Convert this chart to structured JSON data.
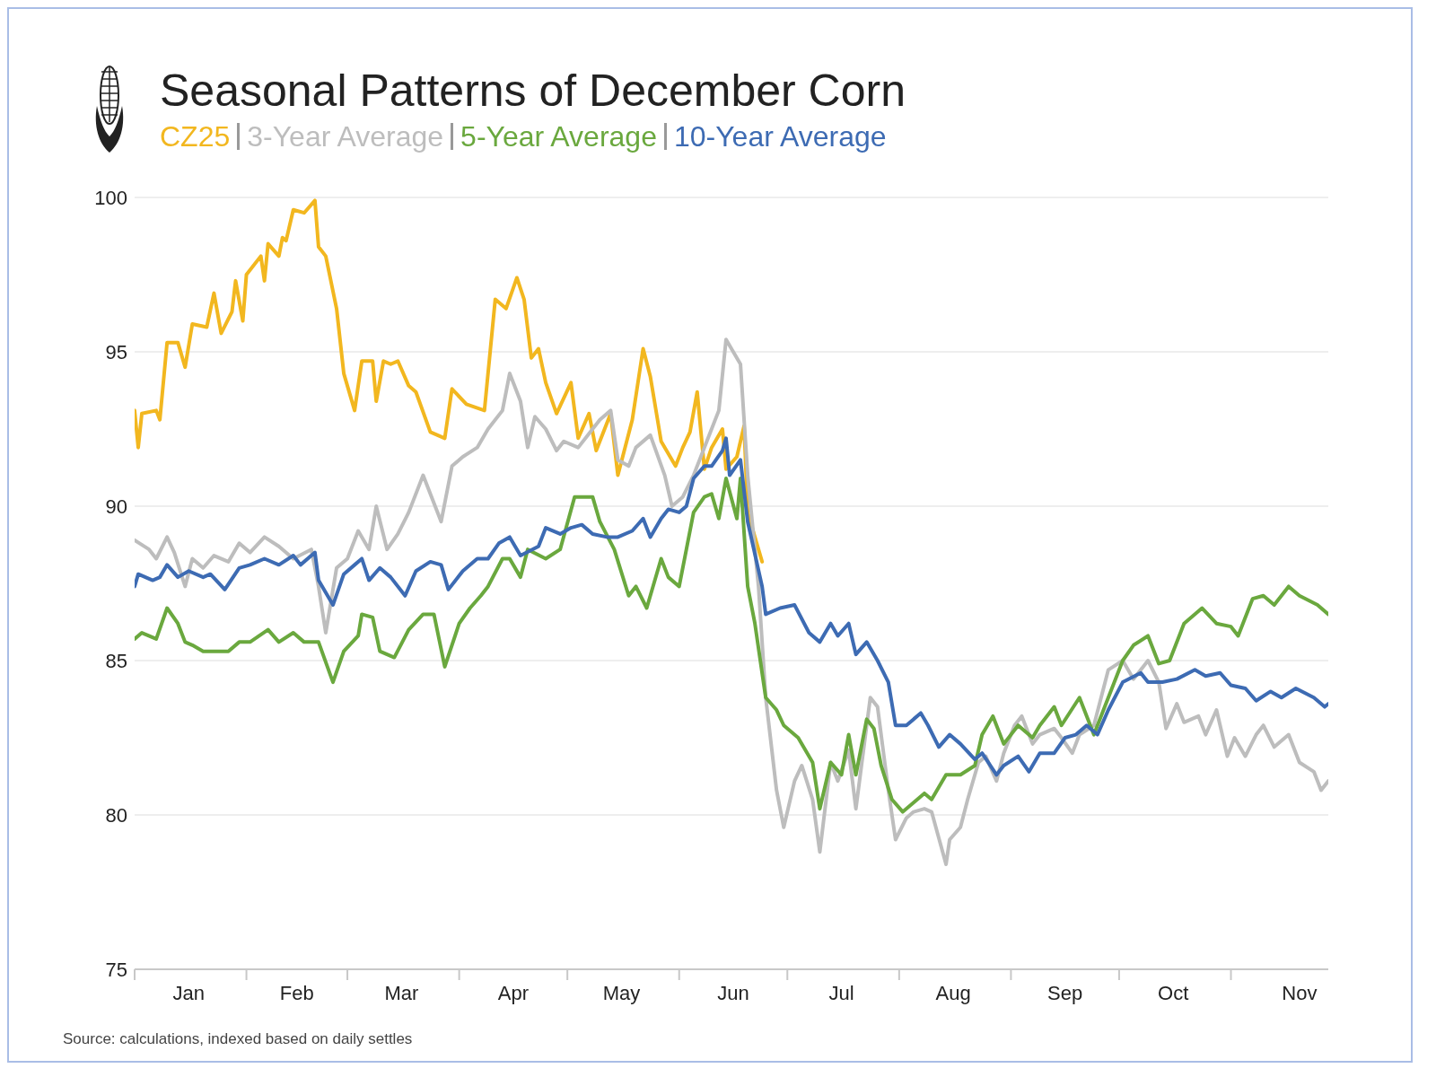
{
  "chart_data": {
    "type": "line",
    "title": "Seasonal Patterns of December Corn",
    "annotations": [
      "Source: calculations, indexed based on daily settles"
    ],
    "legend": "top",
    "grid": "y",
    "xlim": [
      "--01-01",
      "--11-28"
    ],
    "xticks": [
      {
        "value": "--01-01",
        "label": null
      },
      {
        "value": "--01-16",
        "label": "Jan"
      },
      {
        "value": "--02-01",
        "label": null
      },
      {
        "value": "--02-15",
        "label": "Feb"
      },
      {
        "value": "--03-01",
        "label": null
      },
      {
        "value": "--03-16",
        "label": "Mar"
      },
      {
        "value": "--04-01",
        "label": null
      },
      {
        "value": "--04-16",
        "label": "Apr"
      },
      {
        "value": "--05-01",
        "label": null
      },
      {
        "value": "--05-16",
        "label": "May"
      },
      {
        "value": "--06-01",
        "label": null
      },
      {
        "value": "--06-16",
        "label": "Jun"
      },
      {
        "value": "--07-01",
        "label": null
      },
      {
        "value": "--07-16",
        "label": "Jul"
      },
      {
        "value": "--08-01",
        "label": null
      },
      {
        "value": "--08-16",
        "label": "Aug"
      },
      {
        "value": "--09-01",
        "label": null
      },
      {
        "value": "--09-16",
        "label": "Sep"
      },
      {
        "value": "--10-01",
        "label": null
      },
      {
        "value": "--10-16",
        "label": "Oct"
      },
      {
        "value": "--11-01",
        "label": null
      },
      {
        "value": "--11-20",
        "label": "Nov"
      }
    ],
    "ylim": [
      75,
      100
    ],
    "yticks": [
      75,
      80,
      85,
      90,
      95,
      100
    ],
    "series": [
      {
        "name": "CZ25",
        "color": "#f2b71f",
        "x": [
          "--01-01",
          "--01-02",
          "--01-03",
          "--01-07",
          "--01-08",
          "--01-10",
          "--01-13",
          "--01-15",
          "--01-17",
          "--01-21",
          "--01-23",
          "--01-25",
          "--01-28",
          "--01-29",
          "--01-31",
          "--02-01",
          "--02-05",
          "--02-06",
          "--02-07",
          "--02-10",
          "--02-11",
          "--02-12",
          "--02-14",
          "--02-17",
          "--02-20",
          "--02-21",
          "--02-23",
          "--02-26",
          "--02-28",
          "--03-03",
          "--03-05",
          "--03-08",
          "--03-09",
          "--03-11",
          "--03-13",
          "--03-15",
          "--03-18",
          "--03-20",
          "--03-24",
          "--03-28",
          "--03-30",
          "--04-03",
          "--04-08",
          "--04-11",
          "--04-14",
          "--04-17",
          "--04-19",
          "--04-21",
          "--04-23",
          "--04-25",
          "--04-28",
          "--05-02",
          "--05-04",
          "--05-07",
          "--05-09",
          "--05-13",
          "--05-15",
          "--05-19",
          "--05-22",
          "--05-24",
          "--05-27",
          "--05-31",
          "--06-02",
          "--06-04",
          "--06-06",
          "--06-08",
          "--06-10",
          "--06-13",
          "--06-14",
          "--06-17",
          "--06-19",
          "--06-20",
          "--06-24"
        ],
        "values": [
          93.1,
          91.9,
          93.0,
          93.1,
          92.8,
          95.3,
          95.3,
          94.5,
          95.9,
          95.8,
          96.9,
          95.6,
          96.3,
          97.3,
          96.0,
          97.5,
          98.1,
          97.3,
          98.5,
          98.1,
          98.7,
          98.6,
          99.6,
          99.5,
          99.9,
          98.4,
          98.1,
          96.4,
          94.3,
          93.1,
          94.7,
          94.7,
          93.4,
          94.7,
          94.6,
          94.7,
          93.9,
          93.7,
          92.4,
          92.2,
          93.8,
          93.3,
          93.1,
          96.7,
          96.4,
          97.4,
          96.7,
          94.8,
          95.1,
          94.0,
          93.0,
          94.0,
          92.2,
          93.0,
          91.8,
          93.0,
          91.0,
          92.8,
          95.1,
          94.2,
          92.1,
          91.3,
          91.9,
          92.4,
          93.7,
          91.2,
          91.9,
          92.5,
          91.2,
          91.6,
          92.6,
          89.8,
          88.2
        ]
      },
      {
        "name": "3-Year Average",
        "color": "#bdbdbd",
        "x": [
          "--01-01",
          "--01-05",
          "--01-07",
          "--01-10",
          "--01-12",
          "--01-15",
          "--01-17",
          "--01-20",
          "--01-23",
          "--01-27",
          "--01-30",
          "--02-02",
          "--02-06",
          "--02-10",
          "--02-14",
          "--02-19",
          "--02-21",
          "--02-23",
          "--02-26",
          "--03-01",
          "--03-04",
          "--03-07",
          "--03-09",
          "--03-12",
          "--03-15",
          "--03-18",
          "--03-22",
          "--03-24",
          "--03-27",
          "--03-30",
          "--04-02",
          "--04-06",
          "--04-09",
          "--04-13",
          "--04-15",
          "--04-18",
          "--04-20",
          "--04-22",
          "--04-25",
          "--04-28",
          "--04-30",
          "--05-04",
          "--05-08",
          "--05-10",
          "--05-13",
          "--05-15",
          "--05-18",
          "--05-20",
          "--05-24",
          "--05-28",
          "--05-30",
          "--06-02",
          "--06-05",
          "--06-09",
          "--06-12",
          "--06-14",
          "--06-18",
          "--06-20",
          "--06-23",
          "--06-25",
          "--06-28",
          "--06-30",
          "--07-03",
          "--07-05",
          "--07-08",
          "--07-10",
          "--07-13",
          "--07-15",
          "--07-18",
          "--07-20",
          "--07-24",
          "--07-26",
          "--07-29",
          "--07-31",
          "--08-03",
          "--08-05",
          "--08-08",
          "--08-10",
          "--08-14",
          "--08-15",
          "--08-18",
          "--08-20",
          "--08-23",
          "--08-25",
          "--08-28",
          "--08-30",
          "--09-02",
          "--09-04",
          "--09-07",
          "--09-09",
          "--09-13",
          "--09-15",
          "--09-18",
          "--09-20",
          "--09-24",
          "--09-28",
          "--10-02",
          "--10-05",
          "--10-09",
          "--10-12",
          "--10-14",
          "--10-17",
          "--10-19",
          "--10-23",
          "--10-25",
          "--10-28",
          "--10-31",
          "--11-02",
          "--11-05",
          "--11-08",
          "--11-10",
          "--11-13",
          "--11-17",
          "--11-20",
          "--11-24",
          "--11-26",
          "--11-28"
        ],
        "values": [
          88.9,
          88.6,
          88.3,
          89.0,
          88.5,
          87.4,
          88.3,
          88.0,
          88.4,
          88.2,
          88.8,
          88.5,
          89.0,
          88.7,
          88.3,
          88.6,
          87.4,
          85.9,
          88.0,
          88.3,
          89.2,
          88.6,
          90.0,
          88.6,
          89.1,
          89.8,
          91.0,
          90.4,
          89.5,
          91.3,
          91.6,
          91.9,
          92.5,
          93.1,
          94.3,
          93.4,
          91.9,
          92.9,
          92.5,
          91.8,
          92.1,
          91.9,
          92.5,
          92.8,
          93.1,
          91.5,
          91.3,
          91.9,
          92.3,
          91.0,
          90.0,
          90.3,
          91.0,
          92.2,
          93.1,
          95.4,
          94.6,
          91.0,
          87.4,
          83.8,
          80.8,
          79.6,
          81.1,
          81.6,
          80.5,
          78.8,
          81.7,
          81.1,
          82.1,
          80.2,
          83.8,
          83.5,
          80.8,
          79.2,
          79.9,
          80.1,
          80.2,
          80.1,
          78.4,
          79.2,
          79.6,
          80.5,
          81.7,
          81.9,
          81.1,
          82.0,
          82.9,
          83.2,
          82.3,
          82.6,
          82.8,
          82.5,
          82.0,
          82.6,
          82.9,
          84.7,
          85.0,
          84.4,
          85.0,
          84.3,
          82.8,
          83.6,
          83.0,
          83.2,
          82.6,
          83.4,
          81.9,
          82.5,
          81.9,
          82.6,
          82.9,
          82.2,
          82.6,
          81.7,
          81.4,
          80.8,
          81.1
        ]
      },
      {
        "name": "5-Year Average",
        "color": "#6aa83e",
        "x": [
          "--01-01",
          "--01-03",
          "--01-07",
          "--01-10",
          "--01-13",
          "--01-15",
          "--01-17",
          "--01-20",
          "--01-23",
          "--01-27",
          "--01-30",
          "--02-02",
          "--02-07",
          "--02-10",
          "--02-14",
          "--02-17",
          "--02-21",
          "--02-25",
          "--02-28",
          "--03-04",
          "--03-05",
          "--03-08",
          "--03-10",
          "--03-14",
          "--03-18",
          "--03-22",
          "--03-25",
          "--03-28",
          "--04-01",
          "--04-04",
          "--04-07",
          "--04-09",
          "--04-13",
          "--04-15",
          "--04-18",
          "--04-20",
          "--04-25",
          "--04-29",
          "--05-03",
          "--05-08",
          "--05-10",
          "--05-14",
          "--05-18",
          "--05-20",
          "--05-23",
          "--05-27",
          "--05-29",
          "--06-01",
          "--06-03",
          "--06-05",
          "--06-08",
          "--06-10",
          "--06-12",
          "--06-14",
          "--06-17",
          "--06-18",
          "--06-20",
          "--06-22",
          "--06-25",
          "--06-28",
          "--06-30",
          "--07-04",
          "--07-08",
          "--07-10",
          "--07-13",
          "--07-16",
          "--07-18",
          "--07-20",
          "--07-23",
          "--07-25",
          "--07-27",
          "--07-30",
          "--08-02",
          "--08-05",
          "--08-08",
          "--08-10",
          "--08-14",
          "--08-18",
          "--08-22",
          "--08-24",
          "--08-27",
          "--08-30",
          "--09-03",
          "--09-07",
          "--09-09",
          "--09-13",
          "--09-15",
          "--09-20",
          "--09-24",
          "--09-28",
          "--10-02",
          "--10-05",
          "--10-09",
          "--10-12",
          "--10-15",
          "--10-19",
          "--10-24",
          "--10-28",
          "--11-01",
          "--11-03",
          "--11-07",
          "--11-10",
          "--11-13",
          "--11-17",
          "--11-20",
          "--11-25",
          "--11-28"
        ],
        "values": [
          85.7,
          85.9,
          85.7,
          86.7,
          86.2,
          85.6,
          85.5,
          85.3,
          85.3,
          85.3,
          85.6,
          85.6,
          86.0,
          85.6,
          85.9,
          85.6,
          85.6,
          84.3,
          85.3,
          85.8,
          86.5,
          86.4,
          85.3,
          85.1,
          86.0,
          86.5,
          86.5,
          84.8,
          86.2,
          86.7,
          87.1,
          87.4,
          88.3,
          88.3,
          87.7,
          88.6,
          88.3,
          88.6,
          90.3,
          90.3,
          89.5,
          88.6,
          87.1,
          87.4,
          86.7,
          88.3,
          87.7,
          87.4,
          88.6,
          89.8,
          90.3,
          90.4,
          89.6,
          90.9,
          89.6,
          90.9,
          87.4,
          86.2,
          83.8,
          83.4,
          82.9,
          82.5,
          81.7,
          80.2,
          81.7,
          81.3,
          82.6,
          81.3,
          83.1,
          82.8,
          81.6,
          80.5,
          80.1,
          80.4,
          80.7,
          80.5,
          81.3,
          81.3,
          81.6,
          82.6,
          83.2,
          82.3,
          82.9,
          82.5,
          82.9,
          83.5,
          82.9,
          83.8,
          82.6,
          83.8,
          85.0,
          85.5,
          85.8,
          84.9,
          85.0,
          86.2,
          86.7,
          86.2,
          86.1,
          85.8,
          87.0,
          87.1,
          86.8,
          87.4,
          87.1,
          86.8,
          86.5
        ]
      },
      {
        "name": "10-Year Average",
        "color": "#3d6bb3",
        "x": [
          "--01-01",
          "--01-02",
          "--01-06",
          "--01-08",
          "--01-10",
          "--01-13",
          "--01-16",
          "--01-20",
          "--01-22",
          "--01-26",
          "--01-30",
          "--02-02",
          "--02-06",
          "--02-10",
          "--02-14",
          "--02-16",
          "--02-20",
          "--02-21",
          "--02-25",
          "--02-28",
          "--03-03",
          "--03-05",
          "--03-07",
          "--03-10",
          "--03-13",
          "--03-17",
          "--03-20",
          "--03-24",
          "--03-27",
          "--03-29",
          "--04-02",
          "--04-06",
          "--04-09",
          "--04-12",
          "--04-15",
          "--04-18",
          "--04-23",
          "--04-25",
          "--04-29",
          "--05-02",
          "--05-05",
          "--05-08",
          "--05-12",
          "--05-15",
          "--05-19",
          "--05-22",
          "--05-24",
          "--05-27",
          "--05-29",
          "--06-01",
          "--06-03",
          "--06-05",
          "--06-08",
          "--06-10",
          "--06-13",
          "--06-14",
          "--06-15",
          "--06-18",
          "--06-20",
          "--06-24",
          "--06-25",
          "--06-29",
          "--07-03",
          "--07-07",
          "--07-10",
          "--07-13",
          "--07-15",
          "--07-18",
          "--07-20",
          "--07-23",
          "--07-26",
          "--07-29",
          "--07-31",
          "--08-03",
          "--08-07",
          "--08-09",
          "--08-12",
          "--08-15",
          "--08-18",
          "--08-22",
          "--08-24",
          "--08-28",
          "--08-30",
          "--09-03",
          "--09-06",
          "--09-09",
          "--09-13",
          "--09-16",
          "--09-19",
          "--09-22",
          "--09-25",
          "--09-28",
          "--10-02",
          "--10-07",
          "--10-09",
          "--10-13",
          "--10-17",
          "--10-22",
          "--10-25",
          "--10-29",
          "--11-01",
          "--11-05",
          "--11-08",
          "--11-12",
          "--11-15",
          "--11-19",
          "--11-24",
          "--11-27",
          "--11-28"
        ],
        "values": [
          87.4,
          87.8,
          87.6,
          87.7,
          88.1,
          87.7,
          87.9,
          87.7,
          87.8,
          87.3,
          88.0,
          88.1,
          88.3,
          88.1,
          88.4,
          88.1,
          88.5,
          87.6,
          86.8,
          87.8,
          88.1,
          88.3,
          87.6,
          88.0,
          87.7,
          87.1,
          87.9,
          88.2,
          88.1,
          87.3,
          87.9,
          88.3,
          88.3,
          88.8,
          89.0,
          88.4,
          88.7,
          89.3,
          89.1,
          89.3,
          89.4,
          89.1,
          89.0,
          89.0,
          89.2,
          89.6,
          89.0,
          89.6,
          89.9,
          89.8,
          90.0,
          90.9,
          91.3,
          91.3,
          91.8,
          92.2,
          91.0,
          91.5,
          89.5,
          87.4,
          86.5,
          86.7,
          86.8,
          85.9,
          85.6,
          86.2,
          85.8,
          86.2,
          85.2,
          85.6,
          85.0,
          84.3,
          82.9,
          82.9,
          83.3,
          82.9,
          82.2,
          82.6,
          82.3,
          81.8,
          82.0,
          81.3,
          81.6,
          81.9,
          81.4,
          82.0,
          82.0,
          82.5,
          82.6,
          82.9,
          82.6,
          83.4,
          84.3,
          84.6,
          84.3,
          84.3,
          84.4,
          84.7,
          84.5,
          84.6,
          84.2,
          84.1,
          83.7,
          84.0,
          83.8,
          84.1,
          83.8,
          83.5,
          83.6
        ]
      }
    ]
  }
}
